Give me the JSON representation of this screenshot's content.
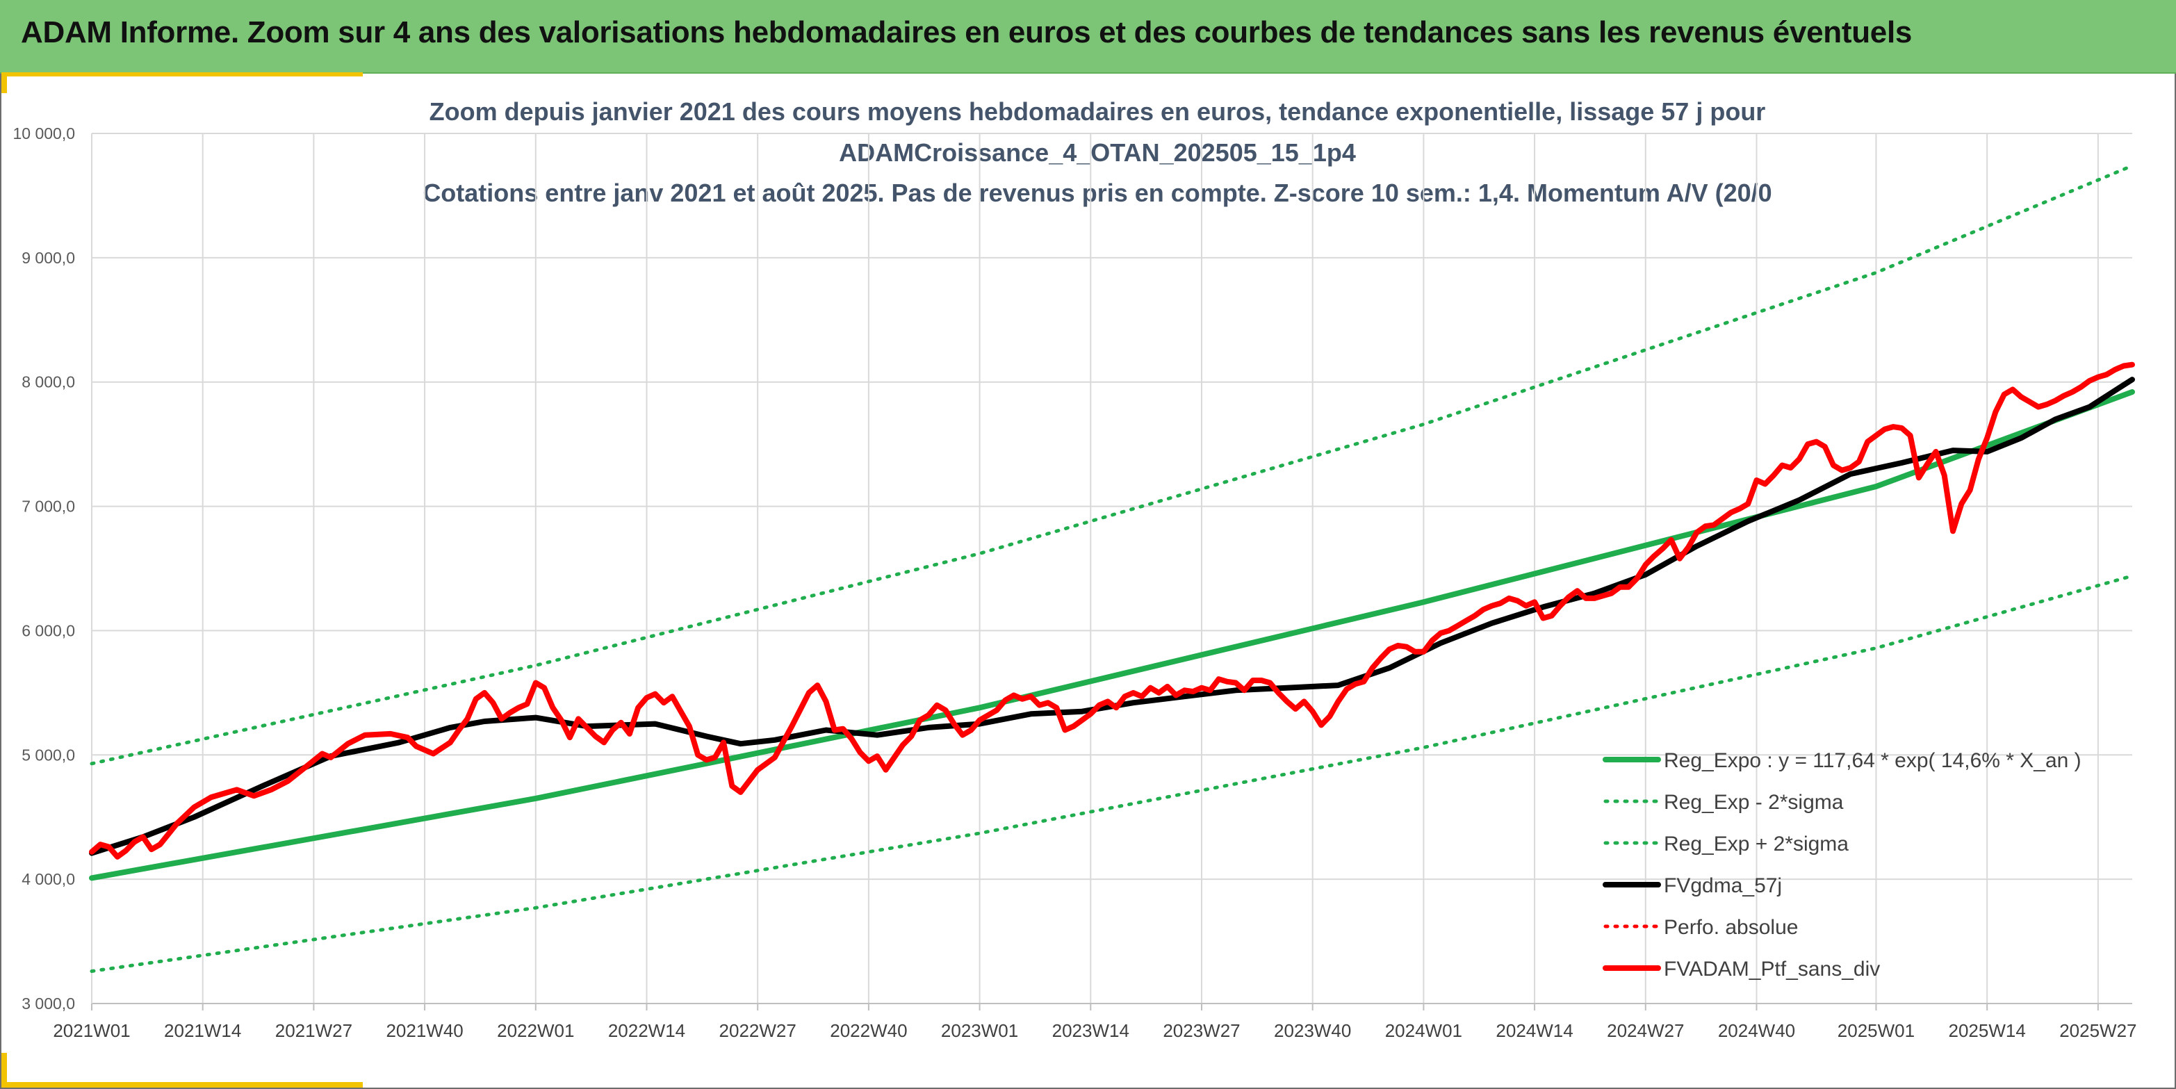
{
  "header": {
    "title": "ADAM Informe. Zoom sur 4 ans des valorisations hebdomadaires en euros et des courbes de tendances sans les revenus éventuels"
  },
  "colors": {
    "header_bg": "#7cc576",
    "accent_yellow": "#f2c300",
    "trend_green": "#1fad4e",
    "black": "#000000",
    "red": "#ff0000"
  },
  "chart_data": {
    "type": "line",
    "title_lines": [
      "Zoom depuis janvier 2021 des cours moyens hebdomadaires en euros, tendance exponentielle, lissage 57 j pour",
      "ADAMCroissance_4_OTAN_202505_15_1p4",
      "Cotations entre janv 2021 et août 2025. Pas de revenus pris en compte. Z-score 10 sem.: 1,4. Momentum A/V (20/0"
    ],
    "xlabel": "",
    "ylabel": "",
    "ylim": [
      3000,
      10000
    ],
    "x_range_weeks": [
      0,
      239
    ],
    "y_ticks": [
      "3 000,0",
      "4 000,0",
      "5 000,0",
      "6 000,0",
      "7 000,0",
      "8 000,0",
      "9 000,0",
      "10 000,0"
    ],
    "y_tick_values": [
      3000,
      4000,
      5000,
      6000,
      7000,
      8000,
      9000,
      10000
    ],
    "x_ticks": [
      "2021W01",
      "2021W14",
      "2021W27",
      "2021W40",
      "2022W01",
      "2022W14",
      "2022W27",
      "2022W40",
      "2023W01",
      "2023W14",
      "2023W27",
      "2023W40",
      "2024W01",
      "2024W14",
      "2024W27",
      "2024W40",
      "2025W01",
      "2025W14",
      "2025W27"
    ],
    "x_tick_weeks": [
      0,
      13,
      26,
      39,
      52,
      65,
      78,
      91,
      104,
      117,
      130,
      143,
      156,
      169,
      182,
      195,
      209,
      222,
      235
    ],
    "grid": true,
    "legend_position": "bottom-right",
    "series": [
      {
        "name": "Reg_Expo : y = 117,64 * exp( 14,6% *  X_an )",
        "style": "solid",
        "color": "#1fad4e",
        "points": [
          [
            0,
            4010
          ],
          [
            52,
            4650
          ],
          [
            104,
            5380
          ],
          [
            156,
            6230
          ],
          [
            209,
            7160
          ],
          [
            239,
            7920
          ]
        ]
      },
      {
        "name": "Reg_Exp - 2*sigma",
        "style": "dotted",
        "color": "#1fad4e",
        "points": [
          [
            0,
            3260
          ],
          [
            52,
            3770
          ],
          [
            104,
            4370
          ],
          [
            156,
            5060
          ],
          [
            209,
            5860
          ],
          [
            239,
            6440
          ]
        ]
      },
      {
        "name": "Reg_Exp + 2*sigma",
        "style": "dotted",
        "color": "#1fad4e",
        "points": [
          [
            0,
            4930
          ],
          [
            52,
            5720
          ],
          [
            104,
            6620
          ],
          [
            156,
            7660
          ],
          [
            209,
            8880
          ],
          [
            239,
            9740
          ]
        ]
      },
      {
        "name": "FVgdma_57j",
        "style": "solid",
        "color": "#000000",
        "points": [
          [
            0,
            4210
          ],
          [
            6,
            4340
          ],
          [
            12,
            4500
          ],
          [
            20,
            4750
          ],
          [
            28,
            4990
          ],
          [
            36,
            5100
          ],
          [
            42,
            5220
          ],
          [
            46,
            5270
          ],
          [
            52,
            5300
          ],
          [
            58,
            5230
          ],
          [
            66,
            5250
          ],
          [
            72,
            5150
          ],
          [
            76,
            5090
          ],
          [
            80,
            5120
          ],
          [
            86,
            5200
          ],
          [
            92,
            5160
          ],
          [
            98,
            5220
          ],
          [
            104,
            5250
          ],
          [
            110,
            5330
          ],
          [
            116,
            5350
          ],
          [
            122,
            5420
          ],
          [
            128,
            5470
          ],
          [
            134,
            5520
          ],
          [
            140,
            5540
          ],
          [
            146,
            5560
          ],
          [
            152,
            5700
          ],
          [
            158,
            5900
          ],
          [
            164,
            6060
          ],
          [
            170,
            6190
          ],
          [
            176,
            6300
          ],
          [
            182,
            6450
          ],
          [
            188,
            6680
          ],
          [
            194,
            6880
          ],
          [
            200,
            7050
          ],
          [
            206,
            7260
          ],
          [
            212,
            7350
          ],
          [
            218,
            7450
          ],
          [
            222,
            7440
          ],
          [
            226,
            7550
          ],
          [
            230,
            7700
          ],
          [
            234,
            7800
          ],
          [
            239,
            8020
          ]
        ]
      },
      {
        "name": "Perfo. absolue",
        "style": "dotted",
        "color": "#ff0000",
        "points": []
      },
      {
        "name": "FVADAM_Ptf_sans_div",
        "style": "solid",
        "color": "#ff0000",
        "points": [
          [
            0,
            4220
          ],
          [
            1,
            4280
          ],
          [
            2,
            4260
          ],
          [
            3,
            4180
          ],
          [
            4,
            4230
          ],
          [
            5,
            4300
          ],
          [
            6,
            4340
          ],
          [
            7,
            4240
          ],
          [
            8,
            4280
          ],
          [
            10,
            4450
          ],
          [
            12,
            4580
          ],
          [
            14,
            4660
          ],
          [
            16,
            4700
          ],
          [
            17,
            4720
          ],
          [
            19,
            4670
          ],
          [
            21,
            4720
          ],
          [
            23,
            4790
          ],
          [
            25,
            4900
          ],
          [
            27,
            5010
          ],
          [
            28,
            4980
          ],
          [
            30,
            5090
          ],
          [
            32,
            5160
          ],
          [
            35,
            5170
          ],
          [
            37,
            5140
          ],
          [
            38,
            5070
          ],
          [
            40,
            5010
          ],
          [
            42,
            5100
          ],
          [
            43,
            5200
          ],
          [
            44,
            5290
          ],
          [
            45,
            5450
          ],
          [
            46,
            5500
          ],
          [
            47,
            5420
          ],
          [
            48,
            5290
          ],
          [
            49,
            5340
          ],
          [
            50,
            5380
          ],
          [
            51,
            5410
          ],
          [
            52,
            5580
          ],
          [
            53,
            5540
          ],
          [
            54,
            5380
          ],
          [
            55,
            5280
          ],
          [
            56,
            5140
          ],
          [
            57,
            5290
          ],
          [
            58,
            5220
          ],
          [
            59,
            5150
          ],
          [
            60,
            5100
          ],
          [
            61,
            5200
          ],
          [
            62,
            5260
          ],
          [
            63,
            5170
          ],
          [
            64,
            5380
          ],
          [
            65,
            5460
          ],
          [
            66,
            5490
          ],
          [
            67,
            5420
          ],
          [
            68,
            5470
          ],
          [
            69,
            5350
          ],
          [
            70,
            5230
          ],
          [
            71,
            5000
          ],
          [
            72,
            4960
          ],
          [
            73,
            4980
          ],
          [
            74,
            5100
          ],
          [
            75,
            4750
          ],
          [
            76,
            4700
          ],
          [
            78,
            4880
          ],
          [
            80,
            4980
          ],
          [
            82,
            5230
          ],
          [
            84,
            5500
          ],
          [
            85,
            5560
          ],
          [
            86,
            5430
          ],
          [
            87,
            5200
          ],
          [
            88,
            5210
          ],
          [
            89,
            5130
          ],
          [
            90,
            5020
          ],
          [
            91,
            4950
          ],
          [
            92,
            4990
          ],
          [
            93,
            4880
          ],
          [
            95,
            5080
          ],
          [
            96,
            5150
          ],
          [
            97,
            5280
          ],
          [
            98,
            5320
          ],
          [
            99,
            5400
          ],
          [
            100,
            5360
          ],
          [
            101,
            5250
          ],
          [
            102,
            5160
          ],
          [
            103,
            5200
          ],
          [
            104,
            5280
          ],
          [
            106,
            5360
          ],
          [
            107,
            5440
          ],
          [
            108,
            5480
          ],
          [
            109,
            5450
          ],
          [
            110,
            5470
          ],
          [
            111,
            5400
          ],
          [
            112,
            5420
          ],
          [
            113,
            5380
          ],
          [
            114,
            5200
          ],
          [
            115,
            5230
          ],
          [
            117,
            5330
          ],
          [
            118,
            5400
          ],
          [
            119,
            5430
          ],
          [
            120,
            5380
          ],
          [
            121,
            5470
          ],
          [
            122,
            5500
          ],
          [
            123,
            5470
          ],
          [
            124,
            5540
          ],
          [
            125,
            5500
          ],
          [
            126,
            5550
          ],
          [
            127,
            5480
          ],
          [
            128,
            5520
          ],
          [
            129,
            5510
          ],
          [
            130,
            5540
          ],
          [
            131,
            5520
          ],
          [
            132,
            5610
          ],
          [
            133,
            5590
          ],
          [
            134,
            5580
          ],
          [
            135,
            5520
          ],
          [
            136,
            5600
          ],
          [
            137,
            5600
          ],
          [
            138,
            5580
          ],
          [
            139,
            5500
          ],
          [
            140,
            5430
          ],
          [
            141,
            5370
          ],
          [
            142,
            5430
          ],
          [
            143,
            5350
          ],
          [
            144,
            5240
          ],
          [
            145,
            5310
          ],
          [
            146,
            5430
          ],
          [
            147,
            5530
          ],
          [
            148,
            5570
          ],
          [
            149,
            5590
          ],
          [
            150,
            5700
          ],
          [
            151,
            5780
          ],
          [
            152,
            5850
          ],
          [
            153,
            5880
          ],
          [
            154,
            5870
          ],
          [
            155,
            5830
          ],
          [
            156,
            5830
          ],
          [
            157,
            5920
          ],
          [
            158,
            5980
          ],
          [
            159,
            6000
          ],
          [
            160,
            6040
          ],
          [
            161,
            6080
          ],
          [
            162,
            6120
          ],
          [
            163,
            6170
          ],
          [
            164,
            6200
          ],
          [
            165,
            6220
          ],
          [
            166,
            6260
          ],
          [
            167,
            6240
          ],
          [
            168,
            6200
          ],
          [
            169,
            6230
          ],
          [
            170,
            6100
          ],
          [
            171,
            6120
          ],
          [
            172,
            6200
          ],
          [
            173,
            6270
          ],
          [
            174,
            6320
          ],
          [
            175,
            6260
          ],
          [
            176,
            6260
          ],
          [
            177,
            6280
          ],
          [
            178,
            6300
          ],
          [
            179,
            6350
          ],
          [
            180,
            6350
          ],
          [
            181,
            6420
          ],
          [
            182,
            6530
          ],
          [
            183,
            6600
          ],
          [
            184,
            6660
          ],
          [
            185,
            6730
          ],
          [
            186,
            6580
          ],
          [
            187,
            6670
          ],
          [
            188,
            6790
          ],
          [
            189,
            6840
          ],
          [
            190,
            6850
          ],
          [
            191,
            6900
          ],
          [
            192,
            6950
          ],
          [
            193,
            6980
          ],
          [
            194,
            7020
          ],
          [
            195,
            7210
          ],
          [
            196,
            7180
          ],
          [
            197,
            7250
          ],
          [
            198,
            7330
          ],
          [
            199,
            7310
          ],
          [
            200,
            7380
          ],
          [
            201,
            7500
          ],
          [
            202,
            7520
          ],
          [
            203,
            7480
          ],
          [
            204,
            7330
          ],
          [
            205,
            7290
          ],
          [
            206,
            7310
          ],
          [
            207,
            7360
          ],
          [
            208,
            7520
          ],
          [
            209,
            7570
          ],
          [
            210,
            7620
          ],
          [
            211,
            7640
          ],
          [
            212,
            7630
          ],
          [
            213,
            7570
          ],
          [
            214,
            7230
          ],
          [
            215,
            7340
          ],
          [
            216,
            7440
          ],
          [
            217,
            7250
          ],
          [
            218,
            6800
          ],
          [
            219,
            7020
          ],
          [
            220,
            7130
          ],
          [
            221,
            7380
          ],
          [
            222,
            7550
          ],
          [
            223,
            7760
          ],
          [
            224,
            7900
          ],
          [
            225,
            7940
          ],
          [
            226,
            7880
          ],
          [
            227,
            7840
          ],
          [
            228,
            7800
          ],
          [
            229,
            7820
          ],
          [
            230,
            7850
          ],
          [
            231,
            7890
          ],
          [
            232,
            7920
          ],
          [
            233,
            7960
          ],
          [
            234,
            8010
          ],
          [
            235,
            8040
          ],
          [
            236,
            8060
          ],
          [
            237,
            8100
          ],
          [
            238,
            8130
          ],
          [
            239,
            8140
          ]
        ]
      }
    ]
  }
}
